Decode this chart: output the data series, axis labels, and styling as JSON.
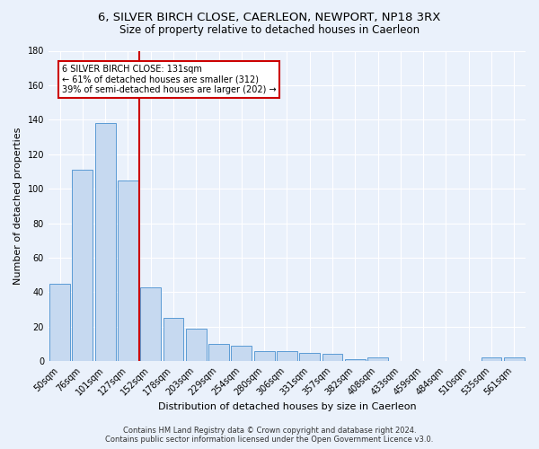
{
  "title": "6, SILVER BIRCH CLOSE, CAERLEON, NEWPORT, NP18 3RX",
  "subtitle": "Size of property relative to detached houses in Caerleon",
  "xlabel": "Distribution of detached houses by size in Caerleon",
  "ylabel": "Number of detached properties",
  "footer_line1": "Contains HM Land Registry data © Crown copyright and database right 2024.",
  "footer_line2": "Contains public sector information licensed under the Open Government Licence v3.0.",
  "categories": [
    "50sqm",
    "76sqm",
    "101sqm",
    "127sqm",
    "152sqm",
    "178sqm",
    "203sqm",
    "229sqm",
    "254sqm",
    "280sqm",
    "306sqm",
    "331sqm",
    "357sqm",
    "382sqm",
    "408sqm",
    "433sqm",
    "459sqm",
    "484sqm",
    "510sqm",
    "535sqm",
    "561sqm"
  ],
  "values": [
    45,
    111,
    138,
    105,
    43,
    25,
    19,
    10,
    9,
    6,
    6,
    5,
    4,
    1,
    2,
    0,
    0,
    0,
    0,
    2,
    2
  ],
  "bar_color": "#c6d9f0",
  "bar_edge_color": "#5b9bd5",
  "red_line_x": 3.5,
  "red_line_color": "#cc0000",
  "annotation_text": "6 SILVER BIRCH CLOSE: 131sqm\n← 61% of detached houses are smaller (312)\n39% of semi-detached houses are larger (202) →",
  "annotation_box_color": "white",
  "annotation_box_edge_color": "#cc0000",
  "ylim": [
    0,
    180
  ],
  "yticks": [
    0,
    20,
    40,
    60,
    80,
    100,
    120,
    140,
    160,
    180
  ],
  "background_color": "#eaf1fb",
  "grid_color": "white",
  "title_fontsize": 9.5,
  "subtitle_fontsize": 8.5,
  "axis_fontsize": 8,
  "tick_fontsize": 7,
  "annotation_fontsize": 7,
  "footer_fontsize": 6
}
